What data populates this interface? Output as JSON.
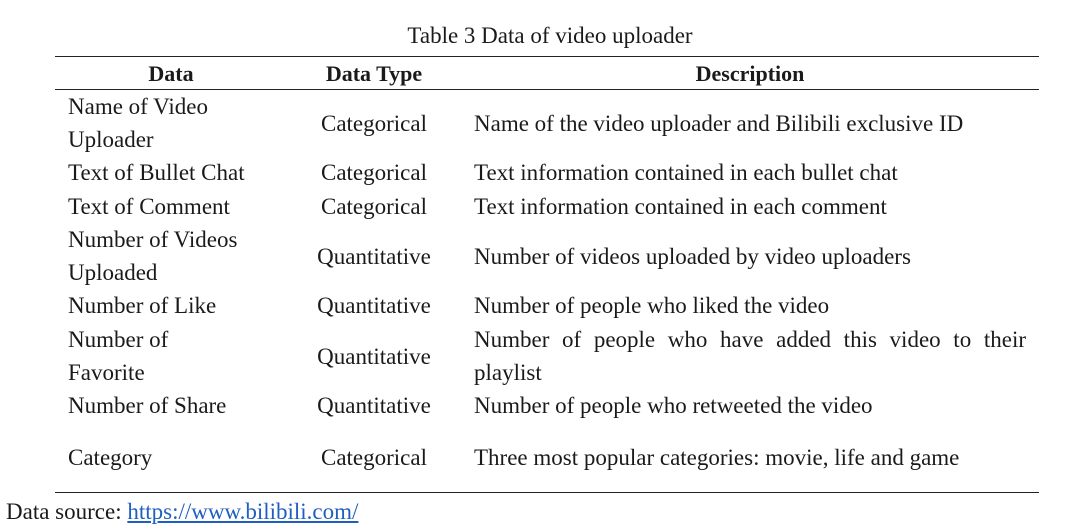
{
  "caption": "Table 3 Data of video uploader",
  "table": {
    "headers": [
      "Data",
      "Data Type",
      "Description"
    ],
    "rows": [
      {
        "data": "Name of Video Uploader",
        "type": "Categorical",
        "description": "Name of the video uploader and Bilibili exclusive ID"
      },
      {
        "data": "Text of Bullet Chat",
        "type": "Categorical",
        "description": "Text information contained in each bullet chat"
      },
      {
        "data": "Text of Comment",
        "type": "Categorical",
        "description": "Text information contained in each comment"
      },
      {
        "data": "Number of Videos Uploaded",
        "type": "Quantitative",
        "description": "Number of videos uploaded by video uploaders"
      },
      {
        "data": "Number of Like",
        "type": "Quantitative",
        "description": "Number of people who liked the video"
      },
      {
        "data": "Number of Favorite",
        "type": "Quantitative",
        "description": "Number of people who have added this video to their playlist"
      },
      {
        "data": "Number of Share",
        "type": "Quantitative",
        "description": "Number of people who retweeted the video"
      },
      {
        "data": "Category",
        "type": "Categorical",
        "description": "Three most popular categories: movie, life and game"
      }
    ]
  },
  "source": {
    "label": "Data source:",
    "link_text": "https://www.bilibili.com/"
  }
}
